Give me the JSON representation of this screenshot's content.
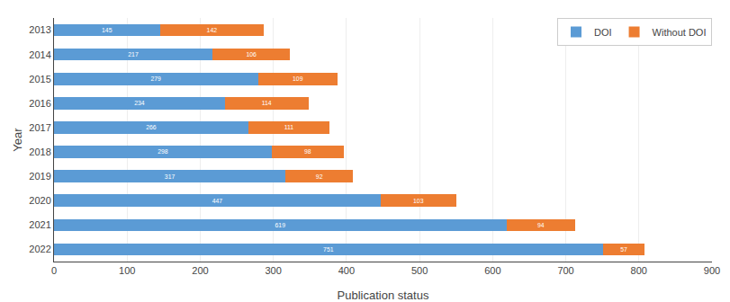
{
  "chart_data": {
    "type": "bar",
    "orientation": "horizontal",
    "stacked": true,
    "categories": [
      "2013",
      "2014",
      "2015",
      "2016",
      "2017",
      "2018",
      "2019",
      "2020",
      "2021",
      "2022"
    ],
    "series": [
      {
        "name": "DOI",
        "color": "#5B9BD5",
        "values": [
          145,
          217,
          279,
          234,
          266,
          298,
          317,
          447,
          619,
          751
        ]
      },
      {
        "name": "Without DOI",
        "color": "#ED7D31",
        "values": [
          142,
          106,
          109,
          114,
          111,
          98,
          92,
          103,
          94,
          57
        ]
      }
    ],
    "xlabel": "Publication status",
    "ylabel": "Year",
    "xlim": [
      0,
      900
    ],
    "xticks": [
      0,
      100,
      200,
      300,
      400,
      500,
      600,
      700,
      800,
      900
    ],
    "grid": true,
    "legend": "upper right",
    "data_labels": true
  }
}
